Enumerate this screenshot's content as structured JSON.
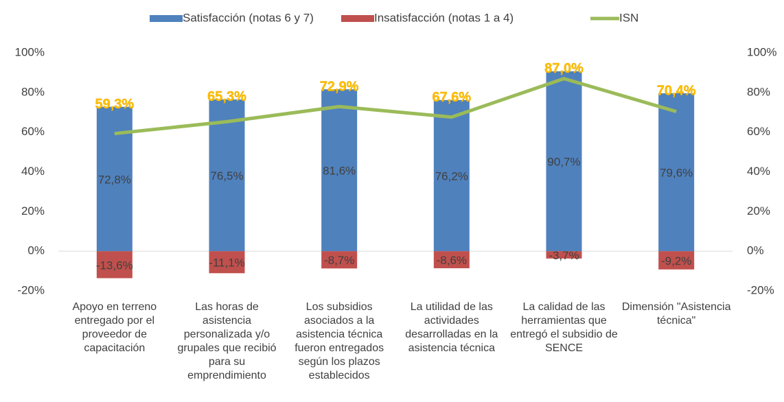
{
  "chart_data": {
    "type": "bar",
    "categories": [
      "Apoyo en terreno entregado por el proveedor de capacitación",
      "Las horas de asistencia personalizada y/o grupales que recibió para su emprendimiento",
      "Los subsidios asociados a la asistencia técnica fueron entregados según los plazos establecidos",
      "La utilidad de las actividades desarrolladas en la asistencia técnica",
      "La calidad de las herramientas que entregó el subsidio de SENCE",
      "Dimensión \"Asistencia técnica\""
    ],
    "series": [
      {
        "name": "Satisfacción (notas 6 y 7)",
        "type": "bar",
        "color": "#4f81bd",
        "values": [
          72.8,
          76.5,
          81.6,
          76.2,
          90.7,
          79.6
        ],
        "value_labels": [
          "72,8%",
          "76,5%",
          "81,6%",
          "76,2%",
          "90,7%",
          "79,6%"
        ]
      },
      {
        "name": "Insatisfacción (notas 1 a 4)",
        "type": "bar",
        "color": "#c0504d",
        "values": [
          -13.6,
          -11.1,
          -8.7,
          -8.6,
          -3.7,
          -9.2
        ],
        "value_labels": [
          "-13,6%",
          "-11,1%",
          "-8,7%",
          "-8,6%",
          "-3,7%",
          "-9,2%"
        ]
      },
      {
        "name": "ISN",
        "type": "line",
        "color": "#9bbb59",
        "label_color": "#ffc000",
        "values": [
          59.3,
          65.3,
          72.9,
          67.6,
          87.0,
          70.4
        ],
        "value_labels": [
          "59,3%",
          "65,3%",
          "72,9%",
          "67,6%",
          "87,0%",
          "70,4%"
        ]
      }
    ],
    "ylim": [
      -20,
      100
    ],
    "yticks": [
      {
        "value": -20,
        "label": "-20%"
      },
      {
        "value": 0,
        "label": "0%"
      },
      {
        "value": 20,
        "label": "20%"
      },
      {
        "value": 40,
        "label": "40%"
      },
      {
        "value": 60,
        "label": "60%"
      },
      {
        "value": 80,
        "label": "80%"
      },
      {
        "value": 100,
        "label": "100%"
      }
    ],
    "y2lim": [
      -20,
      100
    ],
    "y2ticks": [
      {
        "value": -20,
        "label": "-20%"
      },
      {
        "value": 0,
        "label": "0%"
      },
      {
        "value": 20,
        "label": "20%"
      },
      {
        "value": 40,
        "label": "40%"
      },
      {
        "value": 60,
        "label": "60%"
      },
      {
        "value": 80,
        "label": "80%"
      },
      {
        "value": 100,
        "label": "100%"
      }
    ],
    "legend": "top"
  }
}
